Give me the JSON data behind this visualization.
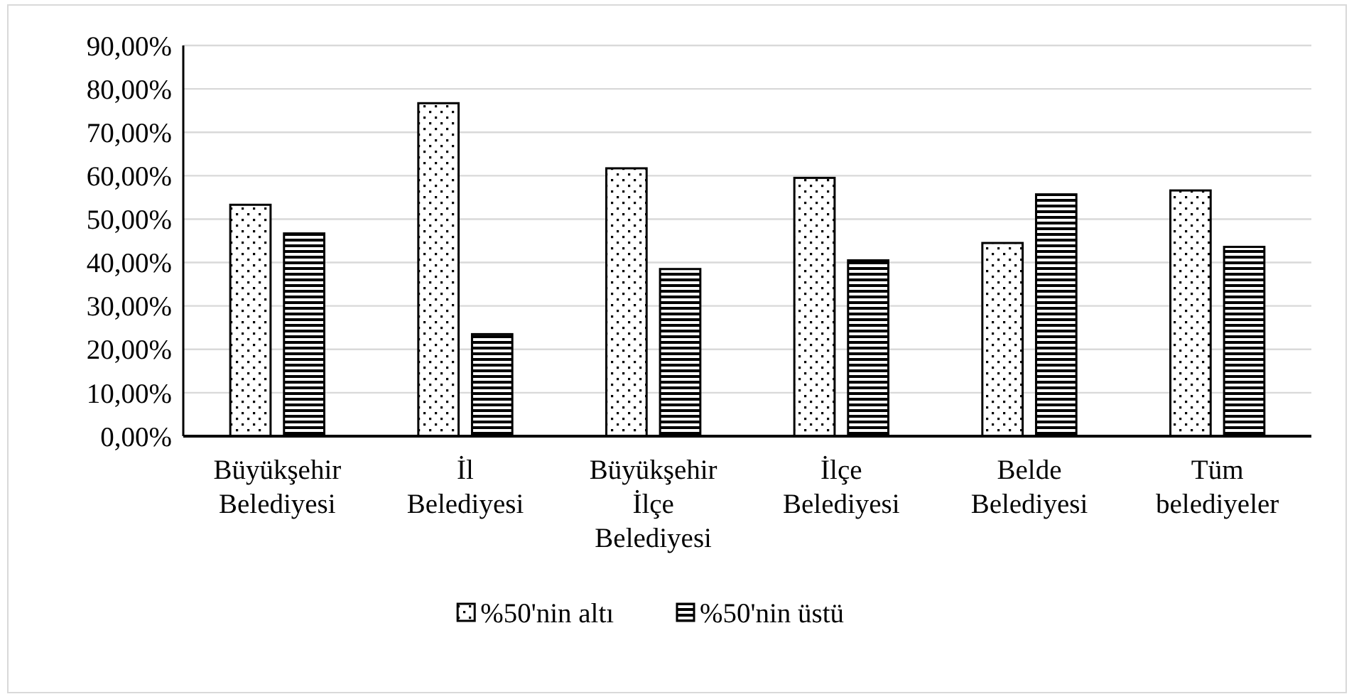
{
  "chart_data": {
    "type": "bar",
    "categories": [
      "Büyükşehir Belediyesi",
      "İl Belediyesi",
      "Büyükşehir İlçe Belediyesi",
      "İlçe Belediyesi",
      "Belde Belediyesi",
      "Tüm belediyeler"
    ],
    "series": [
      {
        "name": "%50'nin altı",
        "color": "#000000",
        "values": [
          53.3,
          76.7,
          61.7,
          59.5,
          44.5,
          56.6
        ]
      },
      {
        "name": "%50'nin üstü",
        "color": "#000000",
        "values": [
          46.7,
          23.5,
          38.5,
          40.5,
          55.7,
          43.6
        ]
      }
    ],
    "ylim": [
      0,
      90
    ],
    "yticks": [
      {
        "value": 0,
        "label": "0,00%"
      },
      {
        "value": 10,
        "label": "10,00%"
      },
      {
        "value": 20,
        "label": "20,00%"
      },
      {
        "value": 30,
        "label": "30,00%"
      },
      {
        "value": 40,
        "label": "40,00%"
      },
      {
        "value": 50,
        "label": "50,00%"
      },
      {
        "value": 60,
        "label": "60,00%"
      },
      {
        "value": 70,
        "label": "70,00%"
      },
      {
        "value": 80,
        "label": "80,00%"
      },
      {
        "value": 90,
        "label": "90,00%"
      }
    ],
    "grid": "y",
    "legend": "bottom"
  }
}
